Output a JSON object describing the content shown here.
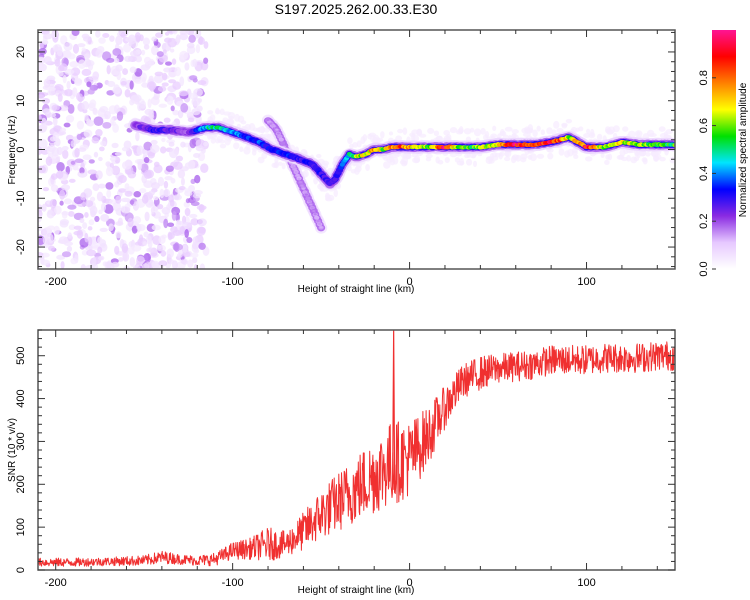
{
  "title": "S197.2025.262.00.33.E30",
  "chart_data": [
    {
      "type": "heatmap",
      "name": "spectrogram",
      "xlabel": "Height of straight line (km)",
      "ylabel": "Frequency (Hz)",
      "xlim": [
        -210,
        150
      ],
      "ylim": [
        -24.5,
        24.5
      ],
      "xticks": [
        -200,
        -100,
        0,
        100
      ],
      "xtick_labels": [
        "-200",
        "-100",
        "0",
        "100"
      ],
      "yticks": [
        -20,
        -10,
        0,
        10,
        20
      ],
      "ytick_labels": [
        "-20",
        "-10",
        "0",
        "10",
        "20"
      ],
      "grid": false,
      "colorbar": {
        "label": "Normalized spectral amplitude",
        "range": [
          0,
          1
        ],
        "ticks": [
          0.0,
          0.2,
          0.4,
          0.6,
          0.8
        ],
        "tick_labels": [
          "0.0",
          "0.2",
          "0.4",
          "0.6",
          "0.8"
        ],
        "colormap": [
          "#ffffff",
          "#e6c8ff",
          "#8a2be2",
          "#0000ff",
          "#00e5ff",
          "#00e000",
          "#ffff00",
          "#ff8000",
          "#ff0000",
          "#ff1493"
        ]
      },
      "noise_region_x": [
        -210,
        -115
      ],
      "ridge": {
        "description": "Main frequency ridge (x km, frequency Hz, normalized amplitude)",
        "x": [
          -155,
          -145,
          -135,
          -125,
          -115,
          -108,
          -100,
          -92,
          -85,
          -78,
          -70,
          -62,
          -55,
          -50,
          -45,
          -42,
          -38,
          -34,
          -30,
          -25,
          -20,
          -15,
          -10,
          -5,
          0,
          10,
          20,
          30,
          40,
          50,
          60,
          70,
          80,
          85,
          90,
          95,
          100,
          110,
          120,
          130,
          140,
          150
        ],
        "freq": [
          5,
          4,
          4,
          3.5,
          4.5,
          4.5,
          3.5,
          2.5,
          1.5,
          0,
          -1,
          -2,
          -3,
          -5,
          -7,
          -6,
          -3,
          -1,
          -1.5,
          -1,
          0,
          0,
          0.5,
          0.5,
          0.5,
          0.5,
          0.5,
          0.5,
          0.5,
          1,
          1,
          1,
          1.5,
          2,
          2.5,
          1.5,
          0.5,
          0.5,
          1.5,
          1,
          1,
          1
        ],
        "amp": [
          0.2,
          0.3,
          0.25,
          0.2,
          0.45,
          0.5,
          0.4,
          0.35,
          0.35,
          0.3,
          0.35,
          0.3,
          0.3,
          0.3,
          0.25,
          0.3,
          0.35,
          0.5,
          0.6,
          0.7,
          0.75,
          0.6,
          0.75,
          0.8,
          0.75,
          0.6,
          0.9,
          0.55,
          0.6,
          0.7,
          0.9,
          0.75,
          0.9,
          0.85,
          0.6,
          0.7,
          0.9,
          0.6,
          0.65,
          0.6,
          0.55,
          0.55
        ]
      },
      "secondary_ridge": {
        "description": "Weaker descending branch (x km, frequency Hz)",
        "x": [
          -80,
          -75,
          -70,
          -65,
          -60,
          -55,
          -50
        ],
        "freq": [
          6,
          4,
          0,
          -4,
          -8,
          -12,
          -16
        ]
      }
    },
    {
      "type": "line",
      "name": "snr",
      "xlabel": "Height of straight line (km)",
      "ylabel": "SNR (10 * v/v)",
      "xlim": [
        -210,
        150
      ],
      "ylim": [
        0,
        560
      ],
      "xticks": [
        -200,
        -100,
        0,
        100
      ],
      "xtick_labels": [
        "-200",
        "-100",
        "0",
        "100"
      ],
      "yticks": [
        0,
        100,
        200,
        300,
        400,
        500
      ],
      "ytick_labels": [
        "0",
        "100",
        "200",
        "300",
        "400",
        "500"
      ],
      "grid": false,
      "color": "#f03030",
      "series": [
        {
          "name": "SNR",
          "x": [
            -210,
            -190,
            -170,
            -150,
            -140,
            -130,
            -120,
            -110,
            -100,
            -90,
            -80,
            -70,
            -60,
            -50,
            -40,
            -30,
            -20,
            -10,
            0,
            10,
            20,
            30,
            40,
            50,
            60,
            70,
            80,
            90,
            100,
            110,
            120,
            130,
            140,
            150
          ],
          "mean": [
            18,
            18,
            20,
            22,
            30,
            25,
            22,
            25,
            45,
            50,
            60,
            60,
            90,
            130,
            160,
            190,
            220,
            250,
            260,
            310,
            380,
            440,
            460,
            470,
            475,
            480,
            490,
            490,
            490,
            495,
            495,
            495,
            500,
            500
          ],
          "noise": [
            10,
            10,
            10,
            12,
            15,
            12,
            12,
            15,
            20,
            25,
            40,
            30,
            45,
            60,
            70,
            80,
            90,
            100,
            90,
            70,
            50,
            40,
            40,
            35,
            35,
            35,
            35,
            35,
            35,
            35,
            35,
            35,
            35,
            35
          ]
        }
      ],
      "annotations": [
        {
          "x": -9,
          "y": 560,
          "text": "spike"
        }
      ]
    }
  ]
}
